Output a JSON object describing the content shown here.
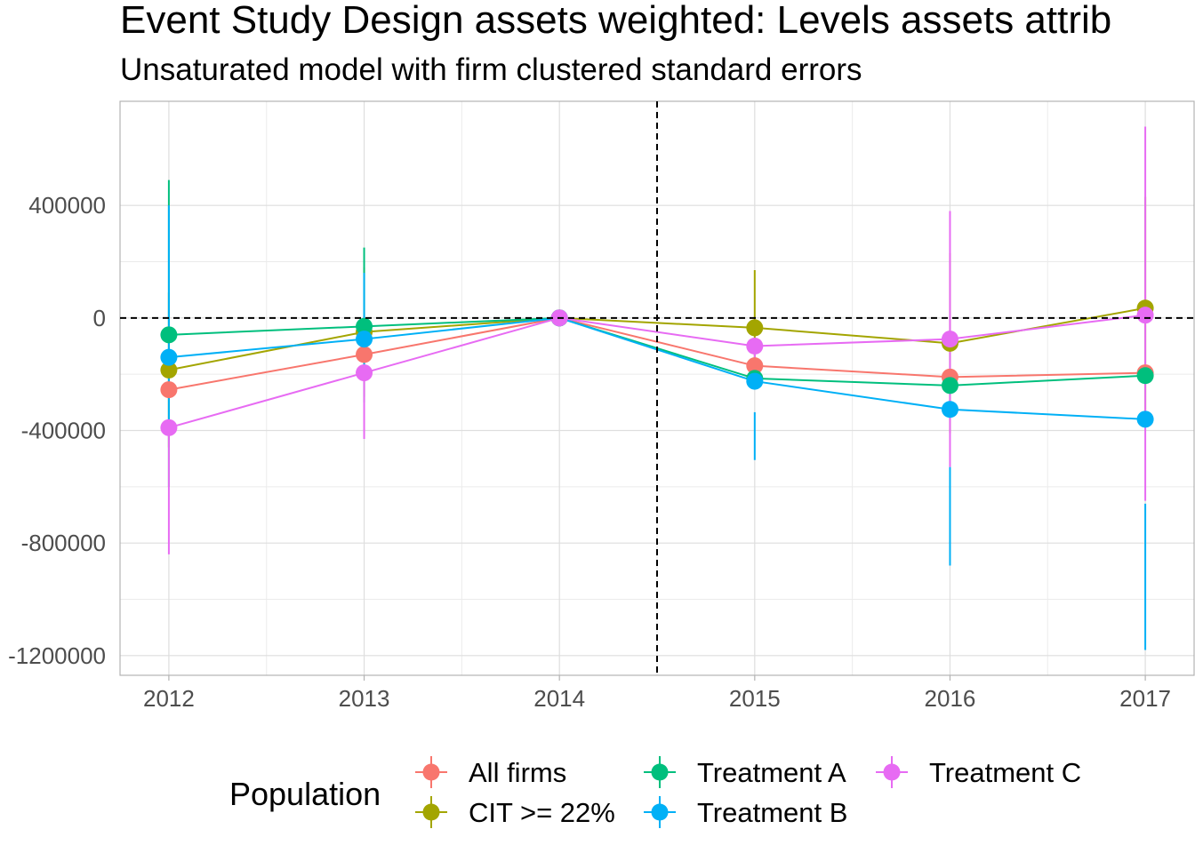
{
  "chart_data": {
    "type": "line",
    "title": "Event Study Design assets weighted: Levels assets attrib",
    "subtitle": "Unsaturated model with firm clustered standard errors",
    "xlabel": "",
    "ylabel": "",
    "x": [
      "2012",
      "2013",
      "2014",
      "2015",
      "2016",
      "2017"
    ],
    "xlim": [
      2011.75,
      2017.25
    ],
    "ylim": [
      -1270000,
      770000
    ],
    "y_ticks": [
      400000,
      0,
      -400000,
      -800000,
      -1200000
    ],
    "y_tick_labels": [
      "400000",
      "0",
      "-400000",
      "-800000",
      "-1200000"
    ],
    "reference_lines": {
      "horizontal_y": 0,
      "vertical_x": 2014.5
    },
    "grid": true,
    "legend": {
      "title": "Population",
      "position": "bottom"
    },
    "series": [
      {
        "name": "All firms",
        "color": "#F8766D",
        "values": [
          -255000,
          -130000,
          0,
          -170000,
          -210000,
          -195000
        ],
        "ci_low": [
          -255000,
          -130000,
          0,
          -170000,
          -210000,
          -195000
        ],
        "ci_high": [
          -255000,
          -130000,
          0,
          -170000,
          -210000,
          -195000
        ]
      },
      {
        "name": "CIT >= 22%",
        "color": "#A3A500",
        "values": [
          -185000,
          -50000,
          0,
          -35000,
          -90000,
          35000
        ],
        "ci_low": [
          -460000,
          -280000,
          0,
          -240000,
          -410000,
          -350000
        ],
        "ci_high": [
          90000,
          180000,
          0,
          170000,
          230000,
          430000
        ]
      },
      {
        "name": "Treatment A",
        "color": "#00BF7D",
        "values": [
          -60000,
          -30000,
          0,
          -215000,
          -240000,
          -205000
        ],
        "ci_low": [
          -600000,
          -300000,
          0,
          -215000,
          -240000,
          -205000
        ],
        "ci_high": [
          490000,
          250000,
          0,
          -215000,
          -240000,
          -205000
        ]
      },
      {
        "name": "Treatment B",
        "color": "#00B0F6",
        "values": [
          -140000,
          -75000,
          0,
          -225000,
          -325000,
          -360000
        ],
        "ci_low": [
          -380000,
          -200000,
          0,
          -505000,
          -880000,
          -1180000
        ],
        "ci_high": [
          400000,
          160000,
          0,
          -335000,
          -530000,
          -660000
        ]
      },
      {
        "name": "Treatment C",
        "color": "#E76BF3",
        "values": [
          -390000,
          -195000,
          0,
          -100000,
          -75000,
          10000
        ],
        "ci_low": [
          -840000,
          -430000,
          0,
          -190000,
          -530000,
          -650000
        ],
        "ci_high": [
          -390000,
          -195000,
          0,
          -100000,
          380000,
          680000
        ]
      }
    ]
  }
}
